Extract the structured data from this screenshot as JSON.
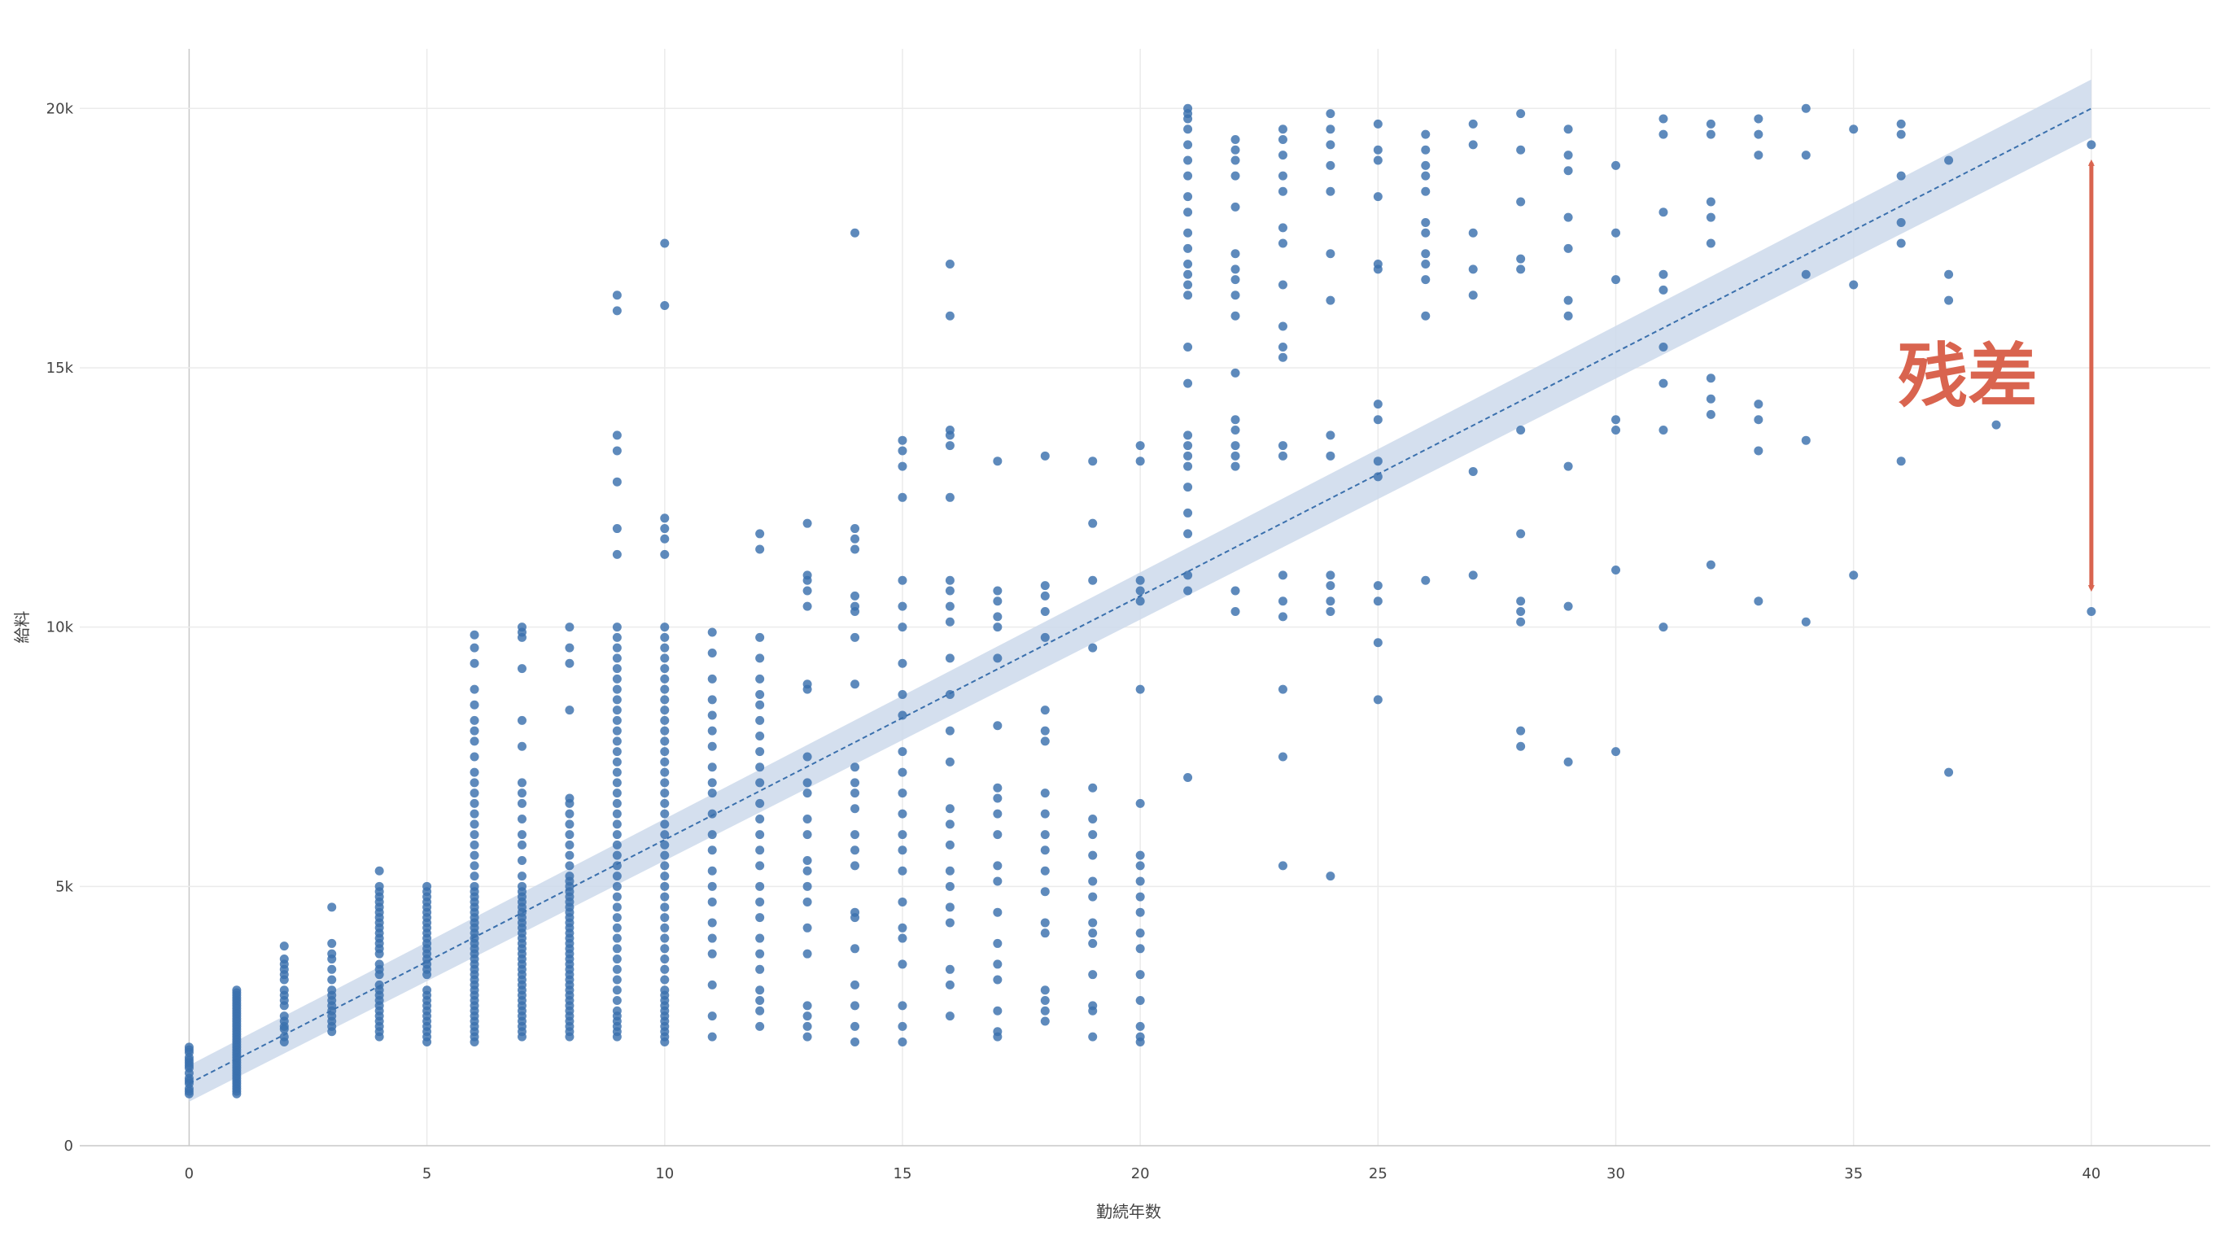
{
  "chart_data": {
    "type": "scatter",
    "xlabel": "勤続年数",
    "ylabel": "給料",
    "xlim": [
      -2.3,
      42.5
    ],
    "ylim": [
      0,
      21150
    ],
    "x_ticks": [
      0,
      5,
      10,
      15,
      20,
      25,
      30,
      35,
      40
    ],
    "y_ticks": [
      0,
      5000,
      10000,
      15000,
      20000
    ],
    "y_tick_labels": [
      "0",
      "5k",
      "10k",
      "15k",
      "20k"
    ],
    "grid": true,
    "colors": {
      "points": "#3a70ad",
      "band": "#cdd9eb",
      "trend_line": "#3a70ad",
      "annotation": "#d9644f"
    },
    "trendline": {
      "x0": 0,
      "y0": 1200,
      "x1": 40,
      "y1": 20000,
      "style": "dashed",
      "confidence_band_half_width": 350
    },
    "annotation": {
      "text": "残差",
      "arrow_x": 40,
      "arrow_y_from": 19300,
      "arrow_y_to": 10400
    },
    "columns": [
      {
        "x": 0,
        "y": [
          1000,
          1050,
          1100,
          1200,
          1250,
          1300,
          1400,
          1500,
          1550,
          1600,
          1650,
          1700,
          1800,
          1850,
          1900
        ]
      },
      {
        "x": 1,
        "y": [
          1000,
          1050,
          1100,
          1150,
          1200,
          1250,
          1300,
          1350,
          1400,
          1450,
          1500,
          1550,
          1600,
          1650,
          1700,
          1750,
          1800,
          1850,
          1900,
          1950,
          2000,
          2050,
          2100,
          2150,
          2200,
          2250,
          2300,
          2350,
          2400,
          2450,
          2500,
          2550,
          2600,
          2650,
          2700,
          2750,
          2800,
          2850,
          2900,
          2950,
          3000
        ]
      },
      {
        "x": 2,
        "y": [
          2000,
          2100,
          2250,
          2300,
          2400,
          2500,
          2700,
          2800,
          2900,
          3000,
          3200,
          3300,
          3400,
          3500,
          3600,
          3850
        ]
      },
      {
        "x": 3,
        "y": [
          2200,
          2300,
          2400,
          2500,
          2600,
          2700,
          2800,
          2900,
          3000,
          3200,
          3400,
          3600,
          3700,
          3900,
          4600
        ]
      },
      {
        "x": 4,
        "y": [
          2100,
          2200,
          2300,
          2400,
          2500,
          2600,
          2700,
          2800,
          2900,
          3000,
          3100,
          3300,
          3400,
          3500,
          3700,
          3800,
          3900,
          4000,
          4100,
          4200,
          4300,
          4400,
          4500,
          4600,
          4700,
          4800,
          4900,
          5000,
          5300
        ]
      },
      {
        "x": 5,
        "y": [
          2000,
          2100,
          2200,
          2300,
          2400,
          2500,
          2600,
          2700,
          2800,
          2900,
          3000,
          3300,
          3400,
          3500,
          3600,
          3700,
          3800,
          3900,
          4000,
          4100,
          4200,
          4300,
          4400,
          4500,
          4600,
          4700,
          4800,
          4900,
          5000
        ]
      },
      {
        "x": 6,
        "y": [
          2000,
          2100,
          2200,
          2300,
          2400,
          2500,
          2600,
          2700,
          2800,
          2900,
          3000,
          3100,
          3200,
          3300,
          3400,
          3500,
          3600,
          3700,
          3800,
          3900,
          4000,
          4100,
          4200,
          4300,
          4400,
          4500,
          4600,
          4700,
          4800,
          4900,
          5000,
          5200,
          5400,
          5600,
          5800,
          6000,
          6200,
          6400,
          6600,
          6800,
          7000,
          7200,
          7500,
          7800,
          8000,
          8200,
          8500,
          8800,
          9300,
          9600,
          9850
        ]
      },
      {
        "x": 7,
        "y": [
          2100,
          2200,
          2300,
          2400,
          2500,
          2600,
          2700,
          2800,
          2900,
          3000,
          3100,
          3200,
          3300,
          3400,
          3500,
          3600,
          3700,
          3800,
          3900,
          4000,
          4100,
          4200,
          4300,
          4400,
          4500,
          4600,
          4700,
          4800,
          4900,
          5000,
          5200,
          5500,
          5800,
          6000,
          6300,
          6600,
          6800,
          7000,
          7700,
          8200,
          9200,
          9800,
          9900,
          10000
        ]
      },
      {
        "x": 8,
        "y": [
          2100,
          2200,
          2300,
          2400,
          2500,
          2600,
          2700,
          2800,
          2900,
          3000,
          3100,
          3200,
          3300,
          3400,
          3500,
          3600,
          3700,
          3800,
          3900,
          4000,
          4100,
          4200,
          4300,
          4400,
          4500,
          4600,
          4700,
          4800,
          4900,
          5000,
          5100,
          5200,
          5400,
          5600,
          5800,
          6000,
          6200,
          6400,
          6600,
          6700,
          8400,
          9300,
          9600,
          10000
        ]
      },
      {
        "x": 9,
        "y": [
          2100,
          2200,
          2300,
          2400,
          2500,
          2600,
          2800,
          3000,
          3200,
          3400,
          3600,
          3800,
          4000,
          4200,
          4400,
          4600,
          4800,
          5000,
          5200,
          5400,
          5600,
          5800,
          6000,
          6200,
          6400,
          6600,
          6800,
          7000,
          7200,
          7400,
          7600,
          7800,
          8000,
          8200,
          8400,
          8600,
          8800,
          9000,
          9200,
          9400,
          9600,
          9800,
          10000,
          11400,
          11900,
          12800,
          13400,
          13700,
          16100,
          16400
        ]
      },
      {
        "x": 10,
        "y": [
          2000,
          2100,
          2200,
          2300,
          2400,
          2500,
          2600,
          2700,
          2800,
          2900,
          3000,
          3200,
          3400,
          3600,
          3800,
          4000,
          4200,
          4400,
          4600,
          4800,
          5000,
          5200,
          5400,
          5600,
          5800,
          6000,
          6200,
          6400,
          6600,
          6800,
          7000,
          7200,
          7400,
          7600,
          7800,
          8000,
          8200,
          8400,
          8600,
          8800,
          9000,
          9200,
          9400,
          9600,
          9800,
          10000,
          11400,
          11700,
          11900,
          12100,
          16200,
          17400
        ]
      },
      {
        "x": 11,
        "y": [
          2100,
          2500,
          3100,
          3700,
          4000,
          4300,
          4700,
          5000,
          5300,
          5700,
          6000,
          6400,
          6800,
          7000,
          7300,
          7700,
          8000,
          8300,
          8600,
          9000,
          9500,
          9900
        ]
      },
      {
        "x": 12,
        "y": [
          2300,
          2600,
          2800,
          3000,
          3400,
          3700,
          4000,
          4400,
          4700,
          5000,
          5400,
          5700,
          6000,
          6300,
          6600,
          7000,
          7300,
          7600,
          7900,
          8200,
          8500,
          8700,
          9000,
          9400,
          9800,
          11500,
          11800
        ]
      },
      {
        "x": 13,
        "y": [
          2100,
          2300,
          2500,
          2700,
          3700,
          4200,
          4700,
          5000,
          5300,
          5500,
          6000,
          6300,
          6800,
          7000,
          7500,
          8800,
          8900,
          10400,
          10700,
          10900,
          11000,
          12000
        ]
      },
      {
        "x": 14,
        "y": [
          2000,
          2300,
          2700,
          3100,
          3800,
          4400,
          4500,
          5400,
          5700,
          6000,
          6500,
          6800,
          7000,
          7300,
          8900,
          9800,
          10300,
          10400,
          10600,
          11500,
          11700,
          11900,
          17600
        ]
      },
      {
        "x": 15,
        "y": [
          2000,
          2300,
          2700,
          3500,
          4000,
          4200,
          4700,
          5300,
          5700,
          6000,
          6400,
          6800,
          7200,
          7600,
          8300,
          8700,
          9300,
          10000,
          10400,
          10900,
          12500,
          13100,
          13400,
          13600
        ]
      },
      {
        "x": 16,
        "y": [
          2500,
          3100,
          3400,
          4300,
          4600,
          5000,
          5300,
          5800,
          6200,
          6500,
          7400,
          8000,
          8700,
          9400,
          10100,
          10400,
          10700,
          10900,
          12500,
          13500,
          13700,
          13800,
          16000,
          17000
        ]
      },
      {
        "x": 17,
        "y": [
          2100,
          2200,
          2600,
          3200,
          3500,
          3900,
          4500,
          5100,
          5400,
          6000,
          6400,
          6700,
          6900,
          8100,
          9400,
          10000,
          10200,
          10500,
          10700,
          13200
        ]
      },
      {
        "x": 18,
        "y": [
          2400,
          2600,
          2800,
          3000,
          4100,
          4300,
          4900,
          5300,
          5700,
          6000,
          6400,
          6800,
          7800,
          8000,
          8400,
          9800,
          10300,
          10600,
          10800,
          13300
        ]
      },
      {
        "x": 19,
        "y": [
          2100,
          2600,
          2700,
          3300,
          3900,
          4100,
          4300,
          4800,
          5100,
          5600,
          6000,
          6300,
          6900,
          9600,
          10900,
          12000,
          13200
        ]
      },
      {
        "x": 20,
        "y": [
          2000,
          2100,
          2300,
          2800,
          3300,
          3800,
          4100,
          4500,
          4800,
          5100,
          5400,
          5600,
          6600,
          8800,
          10500,
          10700,
          10900,
          13200,
          13500
        ]
      },
      {
        "x": 21,
        "y": [
          7100,
          10700,
          11000,
          11800,
          12200,
          12700,
          13100,
          13300,
          13500,
          13700,
          14700,
          15400,
          16400,
          16600,
          16800,
          17000,
          17300,
          17600,
          18000,
          18300,
          18700,
          19000,
          19300,
          19600,
          19800,
          19900,
          20000
        ]
      },
      {
        "x": 22,
        "y": [
          10300,
          10700,
          13100,
          13300,
          13500,
          13800,
          14000,
          14900,
          16000,
          16400,
          16700,
          16900,
          17200,
          18100,
          18700,
          19000,
          19200,
          19400
        ]
      },
      {
        "x": 23,
        "y": [
          5400,
          7500,
          8800,
          10200,
          10500,
          11000,
          13300,
          13500,
          15200,
          15400,
          15800,
          16600,
          17400,
          17700,
          18400,
          18700,
          19100,
          19400,
          19600
        ]
      },
      {
        "x": 24,
        "y": [
          5200,
          10300,
          10500,
          10800,
          11000,
          13300,
          13700,
          16300,
          17200,
          18400,
          18900,
          19300,
          19600,
          19900
        ]
      },
      {
        "x": 25,
        "y": [
          8600,
          9700,
          10500,
          10800,
          12900,
          13200,
          14000,
          14300,
          16900,
          17000,
          18300,
          19000,
          19200,
          19700
        ]
      },
      {
        "x": 26,
        "y": [
          10900,
          16000,
          16700,
          17000,
          17200,
          17600,
          17800,
          18400,
          18700,
          18900,
          19200,
          19500
        ]
      },
      {
        "x": 27,
        "y": [
          11000,
          13000,
          16400,
          16900,
          17600,
          19300,
          19700
        ]
      },
      {
        "x": 28,
        "y": [
          7700,
          8000,
          10100,
          10300,
          10500,
          11800,
          13800,
          16900,
          17100,
          18200,
          19200,
          19900
        ]
      },
      {
        "x": 29,
        "y": [
          7400,
          10400,
          13100,
          16000,
          16300,
          17300,
          17900,
          18800,
          19100,
          19600
        ]
      },
      {
        "x": 30,
        "y": [
          7600,
          11100,
          13800,
          14000,
          16700,
          17600,
          18900
        ]
      },
      {
        "x": 31,
        "y": [
          10000,
          13800,
          14700,
          15400,
          16500,
          16800,
          18000,
          19500,
          19800
        ]
      },
      {
        "x": 32,
        "y": [
          11200,
          14100,
          14400,
          14800,
          17400,
          17900,
          18200,
          19500,
          19700
        ]
      },
      {
        "x": 33,
        "y": [
          10500,
          13400,
          14000,
          14300,
          19100,
          19500,
          19800
        ]
      },
      {
        "x": 34,
        "y": [
          10100,
          13600,
          16800,
          19100,
          20000
        ]
      },
      {
        "x": 35,
        "y": [
          11000,
          16600,
          19600
        ]
      },
      {
        "x": 36,
        "y": [
          13200,
          17400,
          17800,
          18700,
          19500,
          19700
        ]
      },
      {
        "x": 37,
        "y": [
          7200,
          16300,
          16800,
          19000
        ]
      },
      {
        "x": 38,
        "y": [
          13900
        ]
      },
      {
        "x": 40,
        "y": [
          10300,
          19300
        ]
      }
    ]
  }
}
